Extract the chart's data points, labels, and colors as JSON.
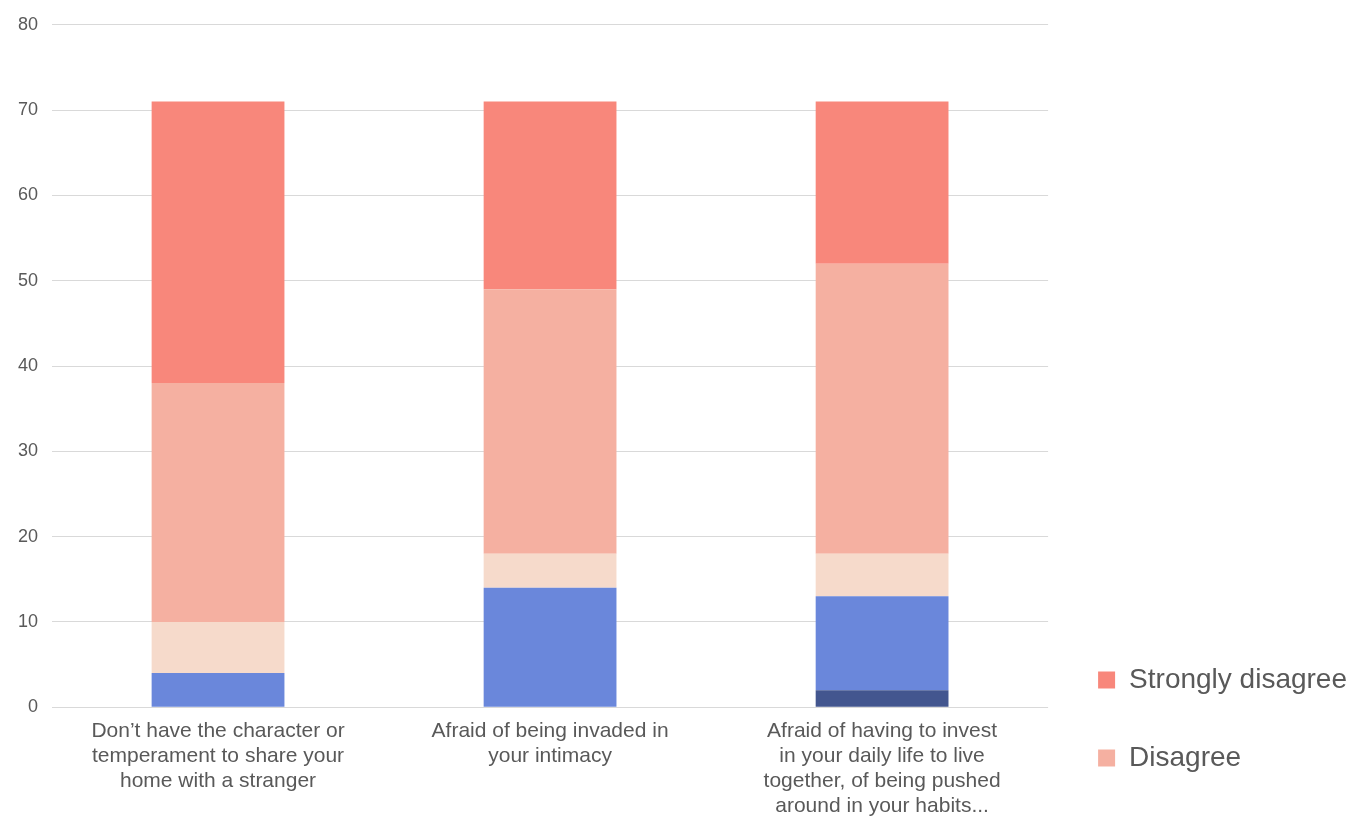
{
  "chart_data": {
    "type": "bar",
    "stacked": true,
    "categories": [
      "Don’t have the character or temperament to share your home with a stranger",
      "Afraid of being invaded in your intimacy",
      "Afraid of having to invest in your daily life to live together, of being pushed around in your habits..."
    ],
    "series": [
      {
        "color": "#43568f",
        "values": [
          0,
          0,
          2
        ]
      },
      {
        "color": "#6a87db",
        "values": [
          4,
          14,
          11
        ]
      },
      {
        "color": "#f6dacb",
        "values": [
          6,
          4,
          5
        ]
      },
      {
        "name": "Disagree",
        "color": "#f5b0a1",
        "values": [
          28,
          31,
          34
        ]
      },
      {
        "name": "Strongly disagree",
        "color": "#f8877b",
        "values": [
          33,
          22,
          19
        ]
      }
    ],
    "ylim": [
      0,
      80
    ],
    "yticks": [
      0,
      10,
      20,
      30,
      40,
      50,
      60,
      70,
      80
    ],
    "grid": "y",
    "legend": "bottom right"
  }
}
